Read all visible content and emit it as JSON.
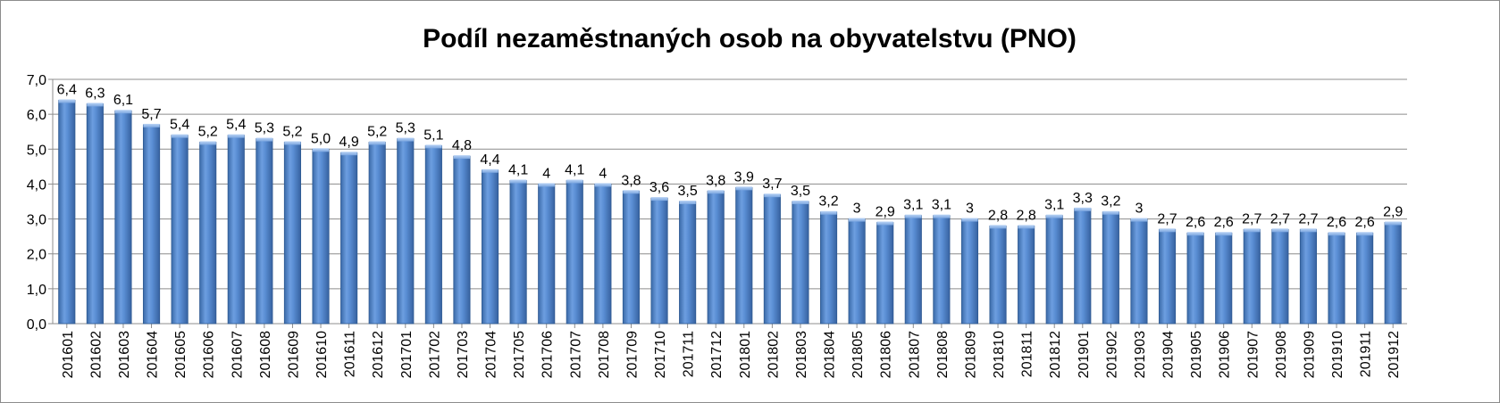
{
  "chart_data": {
    "type": "bar",
    "title": "Podíl nezaměstnaných osob na obyvatelstvu (PNO)",
    "ylim": [
      0,
      7
    ],
    "yticks": [
      "0,0",
      "1,0",
      "2,0",
      "3,0",
      "4,0",
      "5,0",
      "6,0",
      "7,0"
    ],
    "grid": true,
    "legend": "none",
    "bar_color": "#4f81bd",
    "categories": [
      "201601",
      "201602",
      "201603",
      "201604",
      "201605",
      "201606",
      "201607",
      "201608",
      "201609",
      "201610",
      "201611",
      "201612",
      "201701",
      "201702",
      "201703",
      "201704",
      "201705",
      "201706",
      "201707",
      "201708",
      "201709",
      "201710",
      "201711",
      "201712",
      "201801",
      "201802",
      "201803",
      "201804",
      "201805",
      "201806",
      "201807",
      "201808",
      "201809",
      "201810",
      "201811",
      "201812",
      "201901",
      "201902",
      "201903",
      "201904",
      "201905",
      "201906",
      "201907",
      "201908",
      "201909",
      "201910",
      "201911",
      "201912"
    ],
    "values": [
      6.4,
      6.3,
      6.1,
      5.7,
      5.4,
      5.2,
      5.4,
      5.3,
      5.2,
      5.0,
      4.9,
      5.2,
      5.3,
      5.1,
      4.8,
      4.4,
      4.1,
      4,
      4.1,
      4,
      3.8,
      3.6,
      3.5,
      3.8,
      3.9,
      3.7,
      3.5,
      3.2,
      3,
      2.9,
      3.1,
      3.1,
      3,
      2.8,
      2.8,
      3.1,
      3.3,
      3.2,
      3,
      2.7,
      2.6,
      2.6,
      2.7,
      2.7,
      2.7,
      2.6,
      2.6,
      2.9
    ],
    "data_labels": [
      "6,4",
      "6,3",
      "6,1",
      "5,7",
      "5,4",
      "5,2",
      "5,4",
      "5,3",
      "5,2",
      "5,0",
      "4,9",
      "5,2",
      "5,3",
      "5,1",
      "4,8",
      "4,4",
      "4,1",
      "4",
      "4,1",
      "4",
      "3,8",
      "3,6",
      "3,5",
      "3,8",
      "3,9",
      "3,7",
      "3,5",
      "3,2",
      "3",
      "2,9",
      "3,1",
      "3,1",
      "3",
      "2,8",
      "2,8",
      "3,1",
      "3,3",
      "3,2",
      "3",
      "2,7",
      "2,6",
      "2,6",
      "2,7",
      "2,7",
      "2,7",
      "2,6",
      "2,6",
      "2,9"
    ]
  }
}
